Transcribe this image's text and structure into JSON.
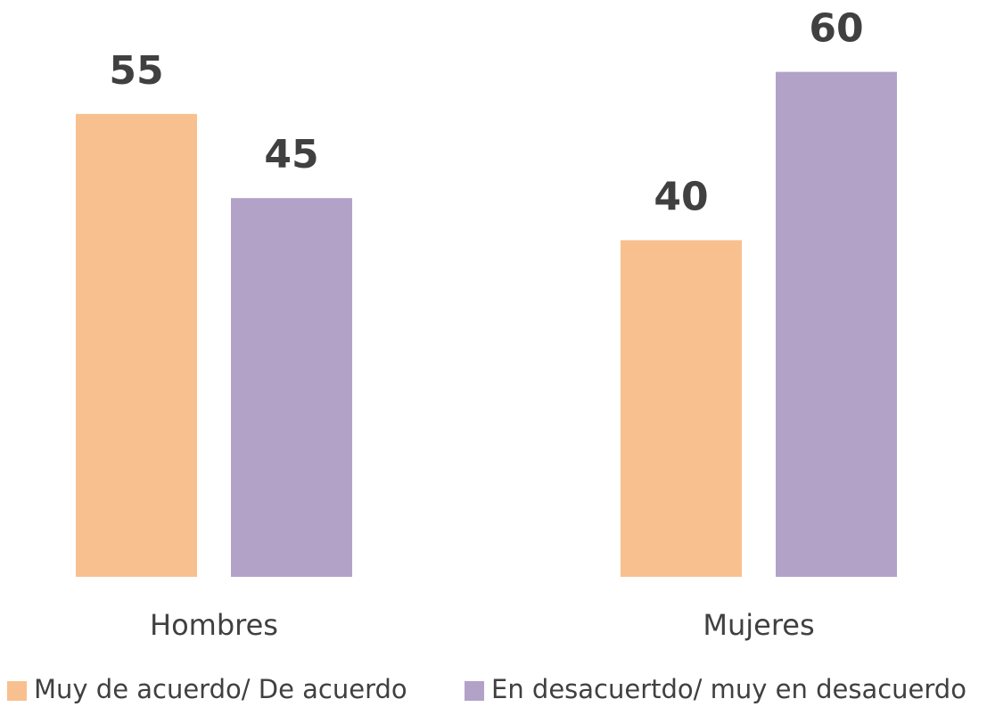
{
  "chart_data": {
    "type": "bar",
    "categories": [
      "Hombres",
      "Mujeres"
    ],
    "series": [
      {
        "name": "Muy de acuerdo/ De acuerdo",
        "color": "#f9c08f",
        "values": [
          55,
          40
        ]
      },
      {
        "name": "En desacuertdo/ muy en desacuerdo",
        "color": "#b3a2c8",
        "values": [
          45,
          60
        ]
      }
    ]
  }
}
